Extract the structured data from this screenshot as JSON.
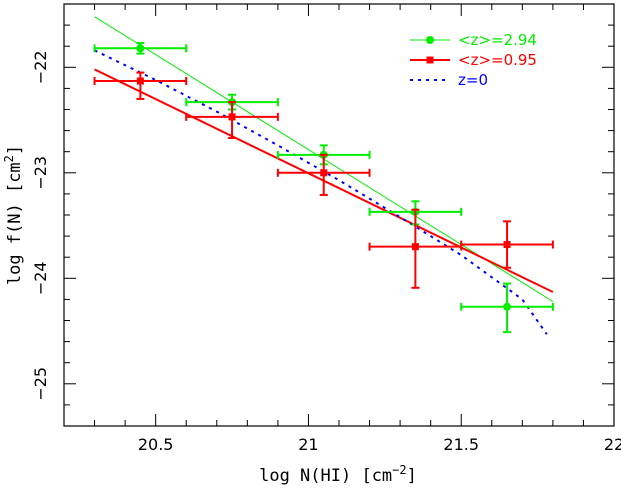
{
  "chart_data": {
    "type": "scatter",
    "xlabel_text": "log N(HI) [cm",
    "xlabel_sup": "−2",
    "xlabel_tail": "]",
    "ylabel_text": "log f(N) [cm",
    "ylabel_sup": "2",
    "ylabel_tail": "]",
    "xlim": [
      20.2,
      22.0
    ],
    "ylim": [
      -25.4,
      -21.4
    ],
    "xticks": [
      20.5,
      21.0,
      21.5,
      22.0
    ],
    "xtick_labels": [
      "20.5",
      "21",
      "21.5",
      "22"
    ],
    "yticks": [
      -25,
      -24,
      -23,
      -22
    ],
    "ytick_labels": [
      "−25",
      "−24",
      "−23",
      "−22"
    ],
    "legend_position": "top-right",
    "series": [
      {
        "name": "<z>=2.94",
        "color": "#00ee00",
        "marker": "circle",
        "points": [
          {
            "x": 20.45,
            "y": -21.82,
            "xerr": 0.15,
            "yerr_up": 0.05,
            "yerr_down": 0.05
          },
          {
            "x": 20.75,
            "y": -22.33,
            "xerr": 0.15,
            "yerr_up": 0.07,
            "yerr_down": 0.07
          },
          {
            "x": 21.05,
            "y": -22.83,
            "xerr": 0.15,
            "yerr_up": 0.09,
            "yerr_down": 0.09
          },
          {
            "x": 21.35,
            "y": -23.37,
            "xerr": 0.15,
            "yerr_up": 0.1,
            "yerr_down": 0.12
          },
          {
            "x": 21.65,
            "y": -24.27,
            "xerr": 0.15,
            "yerr_up": 0.22,
            "yerr_down": 0.24
          }
        ],
        "fit": [
          [
            20.3,
            -21.52
          ],
          [
            21.8,
            -24.22
          ]
        ]
      },
      {
        "name": "<z>=0.95",
        "color": "#ff0000",
        "marker": "square",
        "points": [
          {
            "x": 20.45,
            "y": -22.13,
            "xerr": 0.15,
            "yerr_up": 0.08,
            "yerr_down": 0.17
          },
          {
            "x": 20.75,
            "y": -22.47,
            "xerr": 0.15,
            "yerr_up": 0.14,
            "yerr_down": 0.2
          },
          {
            "x": 21.05,
            "y": -23.0,
            "xerr": 0.15,
            "yerr_up": 0.17,
            "yerr_down": 0.21
          },
          {
            "x": 21.35,
            "y": -23.7,
            "xerr": 0.15,
            "yerr_up": 0.35,
            "yerr_down": 0.39
          },
          {
            "x": 21.65,
            "y": -23.68,
            "xerr": 0.15,
            "yerr_up": 0.22,
            "yerr_down": 0.22
          }
        ],
        "fit": [
          [
            20.3,
            -22.02
          ],
          [
            21.8,
            -24.13
          ]
        ]
      },
      {
        "name": "z=0",
        "color": "#0000ff",
        "line_style": "dotted",
        "curve": [
          [
            20.3,
            -21.84
          ],
          [
            20.5,
            -22.12
          ],
          [
            20.7,
            -22.42
          ],
          [
            20.9,
            -22.74
          ],
          [
            21.1,
            -23.07
          ],
          [
            21.3,
            -23.42
          ],
          [
            21.5,
            -23.78
          ],
          [
            21.7,
            -24.2
          ],
          [
            21.78,
            -24.53
          ]
        ]
      }
    ]
  }
}
